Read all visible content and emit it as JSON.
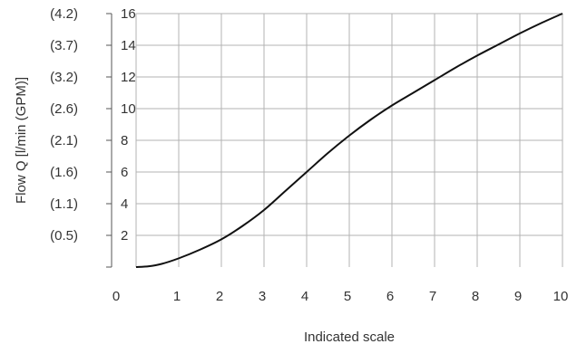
{
  "chart_data": {
    "type": "line",
    "title": "",
    "xlabel": "Indicated scale",
    "ylabel": "Flow Q [l/min (GPM)]",
    "xlim": [
      0,
      10
    ],
    "ylim": [
      0,
      16
    ],
    "x_ticks": [
      "0",
      "1",
      "2",
      "3",
      "4",
      "5",
      "6",
      "7",
      "8",
      "9",
      "10"
    ],
    "y_ticks": [
      {
        "value": 2,
        "lpm": "2",
        "gpm": "(0.5)"
      },
      {
        "value": 4,
        "lpm": "4",
        "gpm": "(1.1)"
      },
      {
        "value": 6,
        "lpm": "6",
        "gpm": "(1.6)"
      },
      {
        "value": 8,
        "lpm": "8",
        "gpm": "(2.1)"
      },
      {
        "value": 10,
        "lpm": "10",
        "gpm": "(2.6)"
      },
      {
        "value": 12,
        "lpm": "12",
        "gpm": "(3.2)"
      },
      {
        "value": 14,
        "lpm": "14",
        "gpm": "(3.7)"
      },
      {
        "value": 16,
        "lpm": "16",
        "gpm": "(4.2)"
      }
    ],
    "grid": true,
    "series": [
      {
        "x": [
          0,
          0.3,
          0.6,
          1,
          1.5,
          2,
          2.5,
          3,
          3.5,
          4,
          4.5,
          5,
          5.5,
          6,
          6.5,
          7,
          7.5,
          8,
          8.5,
          9,
          9.5,
          10
        ],
        "y": [
          0,
          0.05,
          0.2,
          0.55,
          1.1,
          1.75,
          2.6,
          3.6,
          4.8,
          6.0,
          7.2,
          8.3,
          9.3,
          10.2,
          11.0,
          11.8,
          12.6,
          13.35,
          14.05,
          14.75,
          15.4,
          16.0
        ]
      }
    ]
  }
}
